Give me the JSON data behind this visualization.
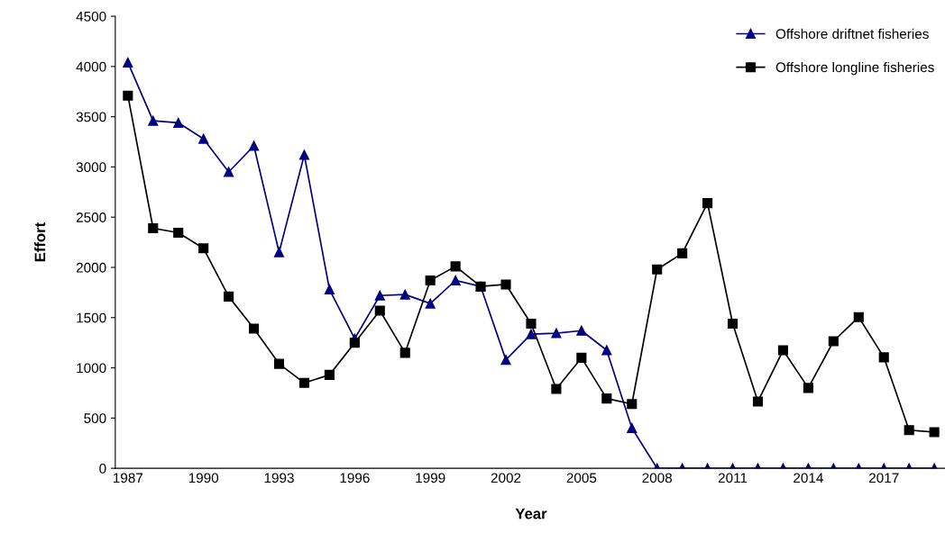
{
  "chart_data": {
    "type": "line",
    "xlabel": "Year",
    "ylabel": "Effort",
    "categories": [
      "1987",
      null,
      null,
      "1990",
      null,
      null,
      "1993",
      null,
      null,
      "1996",
      null,
      null,
      "1999",
      null,
      null,
      "2002",
      null,
      null,
      "2005",
      null,
      null,
      "2008",
      null,
      null,
      "2011",
      null,
      null,
      "2014",
      null,
      null,
      "2017",
      null,
      null
    ],
    "series": [
      {
        "name": "Offshore driftnet fisheries",
        "color": "#000080",
        "marker": "triangle",
        "values": [
          4040,
          3460,
          3440,
          3280,
          2950,
          3210,
          2150,
          3120,
          1780,
          1290,
          1720,
          1730,
          1640,
          1870,
          1810,
          1080,
          1335,
          1345,
          1370,
          1175,
          400,
          0,
          0,
          0,
          0,
          0,
          0,
          0,
          0,
          0,
          0,
          0,
          0
        ]
      },
      {
        "name": "Offshore longline fisheries",
        "color": "#000000",
        "marker": "square",
        "values": [
          3710,
          2390,
          2345,
          2190,
          1710,
          1390,
          1040,
          850,
          930,
          1250,
          1570,
          1150,
          1870,
          2010,
          1810,
          1830,
          1440,
          790,
          1100,
          695,
          640,
          1980,
          2140,
          2640,
          1440,
          665,
          1175,
          800,
          1265,
          1505,
          1105,
          380,
          360
        ]
      }
    ],
    "ylim": [
      0,
      4500
    ],
    "yticks": [
      0,
      500,
      1000,
      1500,
      2000,
      2500,
      3000,
      3500,
      4000,
      4500
    ],
    "grid": false,
    "legend": "top right",
    "line_style": "solid"
  }
}
